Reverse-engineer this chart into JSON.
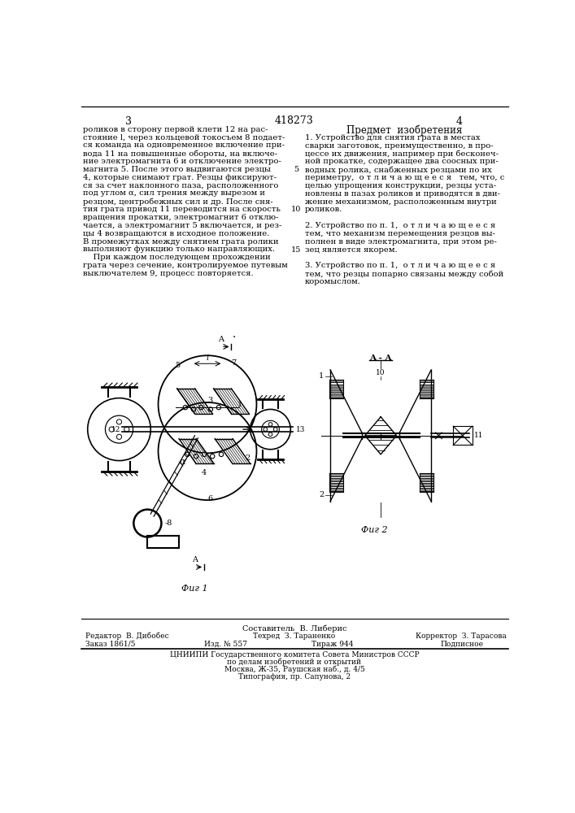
{
  "patent_number": "418273",
  "page_left": "3",
  "page_right": "4",
  "right_title": "Предмет  изобретения",
  "left_text": [
    "роликов в сторону первой клети 12 на рас-",
    "стояние l, через кольцевой токосъем 8 подает-",
    "ся команда на одновременное включение при-",
    "вода 11 на повышенные обороты, на включе-",
    "ние электромагнита 6 и отключение электро-",
    "магнита 5. После этого выдвигаются резцы",
    "4, которые снимают грат. Резцы фиксируют-",
    "ся за счет наклонного паза, расположенного",
    "под углом α, сил трения между вырезом и",
    "резцом, центробежных сил и др. После сня-",
    "тия грата привод 11 переводится на скорость",
    "вращения прокатки, электромагнит 6 отклю-",
    "чается, а электромагнит 5 включается, и рез-",
    "цы 4 возвращаются в исходное положение.",
    "В промежутках между снятием грата ролики",
    "выполняют функцию только направляющих.",
    "    При каждом последующем прохождении",
    "грата через сечение, контролируемое путевым",
    "выключателем 9, процесс повторяется."
  ],
  "right_text_items": [
    {
      "lines": [
        "1. Устройство для снятия грата в местах",
        "сварки заготовок, преимущественно, в про-",
        "цессе их движения, например при бесконеч-",
        "ной прокатке, содержащее два соосных при-",
        "водных ролика, снабженных резцами по их",
        "периметру,  о т л и ч а ю щ е е с я   тем, что, с",
        "целью упрощения конструкции, резцы уста-",
        "новлены в пазах роликов и приводятся в дви-",
        "жение механизмом, расположенным внутри",
        "роликов."
      ]
    },
    {
      "lines": [
        "2. Устройство по п. 1,  о т л и ч а ю щ е е с я",
        "тем, что механизм перемещения резцов вы-",
        "полнен в виде электромагнита, при этом ре-",
        "зец является якорем."
      ]
    },
    {
      "lines": [
        "3. Устройство по п. 1,  о т л и ч а ю щ е е с я",
        "тем, что резцы попарно связаны между собой",
        "коромыслом."
      ]
    }
  ],
  "fig1_label": "Фиг 1",
  "fig2_label": "Фиг 2",
  "footnote_left": "Редактор  В. Дибобес",
  "footnote_middle1": "Техред  З. Тараненко",
  "footnote_right": "Корректор  З. Тарасова",
  "footnote_order": "Заказ 1861/5",
  "footnote_izd": "Изд. № 557",
  "footnote_tirazh": "Тираж 944",
  "footnote_podpisnoe": "Подписное",
  "footnote_org": "ЦНИИПИ Государственного комитета Совета Министров СССР",
  "footnote_org2": "по делам изобретений и открытий",
  "footnote_address": "Москва, Ж-35, Раушская наб., д. 4/5",
  "footnote_tipografiya": "Типография, пр. Сапунова, 2",
  "compositor": "Составитель  В. Либерис",
  "bg_color": "#ffffff",
  "text_color": "#000000"
}
